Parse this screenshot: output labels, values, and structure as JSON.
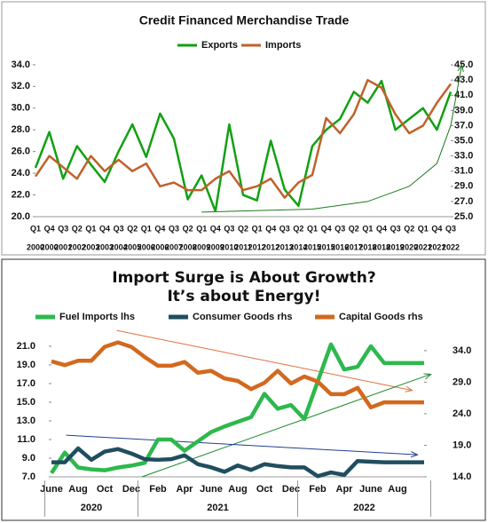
{
  "chart_data": [
    {
      "type": "line",
      "title": "Credit Financed Merchandise Trade",
      "categories": [
        "Q1",
        "Q4",
        "Q3",
        "Q2",
        "Q1",
        "Q4",
        "Q3",
        "Q2",
        "Q1",
        "Q4",
        "Q3",
        "Q2",
        "Q1",
        "Q4",
        "Q3",
        "Q2",
        "Q1",
        "Q4",
        "Q3",
        "Q2",
        "Q1",
        "Q4",
        "Q3",
        "Q2",
        "Q1",
        "Q4",
        "Q3",
        "Q2",
        "Q1",
        "Q4",
        "Q3"
      ],
      "years": [
        "2000",
        "2000",
        "2001",
        "2002",
        "2003",
        "2003",
        "2004",
        "2005",
        "2006",
        "2006",
        "2007",
        "2008",
        "2009",
        "2009",
        "2010",
        "2011",
        "2012",
        "2012",
        "2013",
        "2014",
        "2015",
        "2015",
        "2016",
        "2017",
        "2018",
        "2018",
        "2019",
        "2020",
        "2021",
        "2021",
        "2022"
      ],
      "series": [
        {
          "name": "Exports",
          "color": "#12a012",
          "values": [
            24.5,
            27.8,
            23.5,
            26.5,
            24.8,
            23.2,
            26.0,
            28.5,
            25.5,
            29.5,
            27.2,
            21.6,
            23.8,
            20.5,
            28.5,
            22.0,
            21.5,
            27.0,
            22.5,
            21.0,
            26.5,
            28.0,
            29.0,
            31.5,
            30.5,
            32.5,
            28.0,
            29.0,
            30.0,
            28.0,
            31.5
          ]
        },
        {
          "name": "Imports",
          "color": "#c0612b",
          "axis": "y2",
          "values": [
            30.3,
            33.0,
            31.5,
            30.0,
            33.0,
            31.0,
            32.5,
            31.0,
            32.0,
            29.0,
            29.5,
            28.5,
            28.5,
            30.0,
            31.0,
            28.5,
            29.0,
            30.0,
            27.5,
            29.5,
            30.5,
            38.0,
            36.0,
            38.5,
            43.0,
            42.0,
            38.5,
            36.0,
            37.0,
            40.0,
            42.5
          ]
        }
      ],
      "trend_lines": [
        {
          "color": "#1a7a1a",
          "axis": "y2",
          "x": [
            12,
            20,
            24,
            27,
            29,
            30,
            30.8
          ],
          "y": [
            25.6,
            26.0,
            27.0,
            29.0,
            32.0,
            37.0,
            45.0
          ]
        }
      ],
      "ylim": [
        20,
        34.4
      ],
      "yticks": [
        {
          "value": 20,
          "label": "20.0"
        },
        {
          "value": 22,
          "label": "22.0"
        },
        {
          "value": 24,
          "label": "24.0"
        },
        {
          "value": 26,
          "label": "26.0"
        },
        {
          "value": 28,
          "label": "28.0"
        },
        {
          "value": 30,
          "label": "30.0"
        },
        {
          "value": 32,
          "label": "32.0"
        },
        {
          "value": 34,
          "label": "34.0"
        }
      ],
      "y2lim": [
        25,
        45.6
      ],
      "y2ticks": [
        {
          "value": 25,
          "label": "25.0"
        },
        {
          "value": 27,
          "label": "27.0"
        },
        {
          "value": 29,
          "label": "29.0"
        },
        {
          "value": 31,
          "label": "31.0"
        },
        {
          "value": 33,
          "label": "33.0"
        },
        {
          "value": 35,
          "label": "35.0"
        },
        {
          "value": 37,
          "label": "37.0"
        },
        {
          "value": 39,
          "label": "39.0"
        },
        {
          "value": 41,
          "label": "41.0"
        },
        {
          "value": 43,
          "label": "43.0"
        },
        {
          "value": 45,
          "label": "45.0"
        }
      ],
      "legend": "top"
    },
    {
      "type": "line",
      "title": [
        "Import Surge is About Growth?",
        "It’s about Energy!"
      ],
      "categories": [
        "June",
        null,
        "Aug",
        null,
        "Oct",
        null,
        "Dec",
        null,
        "Feb",
        null,
        "Apr",
        null,
        "June",
        null,
        "Aug",
        null,
        "Oct",
        null,
        "Dec",
        null,
        "Feb",
        null,
        "Apr",
        null,
        "June",
        null,
        "Aug",
        null,
        null
      ],
      "groups": [
        {
          "label": "2020",
          "span": 7
        },
        {
          "label": "2021",
          "span": 12
        },
        {
          "label": "2022",
          "span": 10
        }
      ],
      "series": [
        {
          "name": "Fuel Imports lhs",
          "color": "#2db84d",
          "values": [
            7.4,
            9.6,
            8.0,
            7.8,
            7.7,
            8.0,
            8.2,
            8.5,
            11.0,
            11.0,
            9.8,
            10.8,
            11.8,
            12.4,
            12.9,
            13.4,
            15.9,
            14.3,
            14.7,
            13.2,
            17.2,
            21.2,
            18.5,
            18.8,
            21.0,
            19.2,
            19.2,
            19.2,
            19.2
          ]
        },
        {
          "name": "Consumer Goods rhs",
          "color": "#1f4e5f",
          "axis": "y2",
          "values": [
            16.3,
            16.3,
            18.5,
            16.7,
            18.0,
            18.4,
            17.7,
            16.8,
            16.7,
            16.8,
            17.4,
            16.0,
            15.5,
            14.8,
            15.8,
            15.1,
            16.0,
            15.7,
            15.5,
            15.5,
            14.1,
            14.7,
            14.3,
            16.5,
            16.4,
            16.3,
            16.3,
            16.3,
            16.3
          ]
        },
        {
          "name": "Capital Goods rhs",
          "color": "#d2691e",
          "axis": "y2",
          "values": [
            32.3,
            31.7,
            32.4,
            32.4,
            34.6,
            35.3,
            34.6,
            33.0,
            31.6,
            31.6,
            32.2,
            30.5,
            30.8,
            29.6,
            29.2,
            27.9,
            28.9,
            30.8,
            28.8,
            29.9,
            29.1,
            27.1,
            27.1,
            28.1,
            25.0,
            25.8,
            25.8,
            25.8,
            25.8
          ]
        }
      ],
      "trend_lines": [
        {
          "color": "#e07040",
          "axis": "y2",
          "x": [
            4.9,
            27.1
          ],
          "y": [
            37.2,
            27.7
          ]
        },
        {
          "color": "#1a8a2a",
          "axis": "y",
          "x": [
            6.8,
            28.5
          ],
          "y": [
            7.0,
            18.0
          ]
        },
        {
          "color": "#1f3f8f",
          "axis": "y2",
          "x": [
            1.1,
            27.5
          ],
          "y": [
            20.6,
            17.5
          ]
        }
      ],
      "ylim": [
        7,
        22.9
      ],
      "yticks": [
        {
          "value": 7,
          "label": "7.0"
        },
        {
          "value": 9,
          "label": "9.0"
        },
        {
          "value": 11,
          "label": "11.0"
        },
        {
          "value": 13,
          "label": "13.0"
        },
        {
          "value": 15,
          "label": "15.0"
        },
        {
          "value": 17,
          "label": "17.0"
        },
        {
          "value": 19,
          "label": "19.0"
        },
        {
          "value": 21,
          "label": "21.0"
        }
      ],
      "y2lim": [
        14,
        37.5
      ],
      "y2ticks": [
        {
          "value": 14,
          "label": "14.0"
        },
        {
          "value": 19,
          "label": "19.0"
        },
        {
          "value": 24,
          "label": "24.0"
        },
        {
          "value": 29,
          "label": "29.0"
        },
        {
          "value": 34,
          "label": "34.0"
        }
      ],
      "legend": "top"
    }
  ]
}
